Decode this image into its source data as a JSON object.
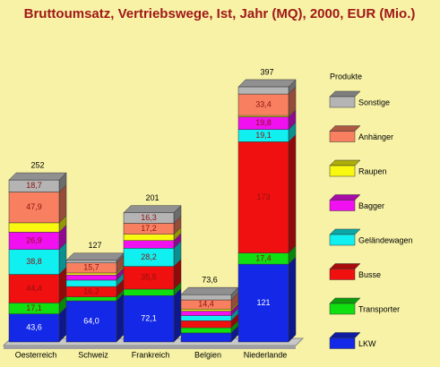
{
  "chart_data": {
    "type": "stacked-bar-3d",
    "title": "Bruttoumsatz, Vertriebswege, Ist, Jahr (MQ), 2000, EUR (Mio.)",
    "legend_title": "Produkte",
    "categories": [
      "Oesterreich",
      "Schweiz",
      "Frankreich",
      "Belgien",
      "Niederlande"
    ],
    "totals": [
      252,
      127,
      201,
      73.6,
      397
    ],
    "total_labels": [
      "252",
      "127",
      "201",
      "73,6",
      "397"
    ],
    "series": [
      {
        "name": "LKW",
        "color": "#1428e8",
        "values": [
          43.6,
          64.0,
          72.1,
          14,
          121
        ],
        "value_labels": [
          "43,6",
          "64,0",
          "72,1",
          null,
          "121"
        ]
      },
      {
        "name": "Transporter",
        "color": "#10e010",
        "values": [
          17.1,
          6,
          10,
          8,
          17.4
        ],
        "value_labels": [
          "17,1",
          null,
          null,
          null,
          "17,4"
        ]
      },
      {
        "name": "Busse",
        "color": "#f01010",
        "values": [
          44.4,
          16.2,
          35.5,
          11,
          173
        ],
        "value_labels": [
          "44,4",
          "16,2",
          "35,5",
          null,
          "173"
        ]
      },
      {
        "name": "Geländewagen",
        "color": "#10f0f0",
        "values": [
          38.8,
          10,
          28.2,
          8,
          19.1
        ],
        "value_labels": [
          "38,8",
          null,
          "28,2",
          null,
          "19,1"
        ]
      },
      {
        "name": "Bagger",
        "color": "#f010f0",
        "values": [
          26.9,
          8,
          12,
          7,
          19.8
        ],
        "value_labels": [
          "26,9",
          null,
          null,
          null,
          "19,8"
        ]
      },
      {
        "name": "Raupen",
        "color": "#f8f810",
        "values": [
          14.6,
          3.1,
          9.7,
          3,
          2
        ],
        "value_labels": [
          null,
          null,
          null,
          null,
          null
        ]
      },
      {
        "name": "Anhänger",
        "color": "#f88060",
        "values": [
          47.9,
          15.7,
          17.2,
          14.4,
          33.4
        ],
        "value_labels": [
          "47,9",
          "15,7",
          "17,2",
          "14,4",
          "33,4"
        ]
      },
      {
        "name": "Sonstige",
        "color": "#b4b4b4",
        "values": [
          18.7,
          4,
          16.3,
          8.2,
          11.3
        ],
        "value_labels": [
          "18,7",
          null,
          "16,3",
          null,
          null
        ]
      }
    ]
  }
}
